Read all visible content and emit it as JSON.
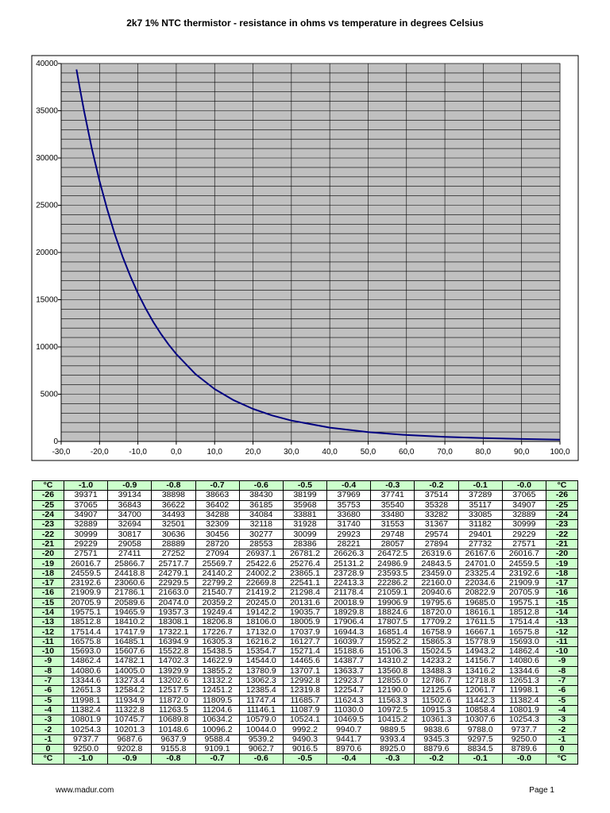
{
  "chart_data": {
    "type": "line",
    "title": "2k7 1% NTC thermistor - resistance in ohms vs temperature in degrees Celsius",
    "xlabel": "",
    "ylabel": "",
    "xlim": [
      -30,
      100
    ],
    "ylim": [
      0,
      40000
    ],
    "x_ticks": [
      "-30,0",
      "-20,0",
      "-10,0",
      "0,0",
      "10,0",
      "20,0",
      "30,0",
      "40,0",
      "50,0",
      "60,0",
      "70,0",
      "80,0",
      "90,0",
      "100,0"
    ],
    "y_ticks": [
      "0",
      "5000",
      "10000",
      "15000",
      "20000",
      "25000",
      "30000",
      "35000",
      "40000"
    ],
    "grid": true,
    "grid_minor_y_step": 1000,
    "legend": "none",
    "colors": {
      "plot_bg": "#c0c0c0",
      "line": "#000080",
      "grid": "#000000"
    },
    "x": [
      -26,
      -25,
      -24,
      -22,
      -20,
      -18,
      -16,
      -14,
      -12,
      -10,
      -8,
      -6,
      -4,
      -2,
      0,
      5,
      10,
      15,
      20,
      25,
      30,
      40,
      50,
      60,
      70,
      80,
      90,
      100
    ],
    "y": [
      39371,
      37065,
      34907,
      30999,
      27571,
      24559.5,
      21909.9,
      19575.1,
      17514.4,
      15693.0,
      14080.6,
      12651.3,
      11382.4,
      10254.3,
      9250.0,
      7130,
      5550,
      4357,
      3448,
      2750,
      2211,
      1458,
      987,
      684,
      484,
      349,
      257,
      192
    ]
  },
  "table": {
    "corner_label": "°C",
    "columns": [
      "-1.0",
      "-0.9",
      "-0.8",
      "-0.7",
      "-0.6",
      "-0.5",
      "-0.4",
      "-0.3",
      "-0.2",
      "-0.1",
      "-0.0"
    ],
    "header_bg": "#ccffcc",
    "rows": [
      {
        "t": "-26",
        "v": [
          "39371",
          "39134",
          "38898",
          "38663",
          "38430",
          "38199",
          "37969",
          "37741",
          "37514",
          "37289",
          "37065"
        ]
      },
      {
        "t": "-25",
        "v": [
          "37065",
          "36843",
          "36622",
          "36402",
          "36185",
          "35968",
          "35753",
          "35540",
          "35328",
          "35117",
          "34907"
        ]
      },
      {
        "t": "-24",
        "v": [
          "34907",
          "34700",
          "34493",
          "34288",
          "34084",
          "33881",
          "33680",
          "33480",
          "33282",
          "33085",
          "32889"
        ]
      },
      {
        "t": "-23",
        "v": [
          "32889",
          "32694",
          "32501",
          "32309",
          "32118",
          "31928",
          "31740",
          "31553",
          "31367",
          "31182",
          "30999"
        ]
      },
      {
        "t": "-22",
        "v": [
          "30999",
          "30817",
          "30636",
          "30456",
          "30277",
          "30099",
          "29923",
          "29748",
          "29574",
          "29401",
          "29229"
        ]
      },
      {
        "t": "-21",
        "v": [
          "29229",
          "29058",
          "28889",
          "28720",
          "28553",
          "28386",
          "28221",
          "28057",
          "27894",
          "27732",
          "27571"
        ]
      },
      {
        "t": "-20",
        "v": [
          "27571",
          "27411",
          "27252",
          "27094",
          "26937.1",
          "26781.2",
          "26626.3",
          "26472.5",
          "26319.6",
          "26167.6",
          "26016.7"
        ]
      },
      {
        "t": "-19",
        "v": [
          "26016.7",
          "25866.7",
          "25717.7",
          "25569.7",
          "25422.6",
          "25276.4",
          "25131.2",
          "24986.9",
          "24843.5",
          "24701.0",
          "24559.5"
        ]
      },
      {
        "t": "-18",
        "v": [
          "24559.5",
          "24418.8",
          "24279.1",
          "24140.2",
          "24002.2",
          "23865.1",
          "23728.9",
          "23593.5",
          "23459.0",
          "23325.4",
          "23192.6"
        ]
      },
      {
        "t": "-17",
        "v": [
          "23192.6",
          "23060.6",
          "22929.5",
          "22799.2",
          "22669.8",
          "22541.1",
          "22413.3",
          "22286.2",
          "22160.0",
          "22034.6",
          "21909.9"
        ]
      },
      {
        "t": "-16",
        "v": [
          "21909.9",
          "21786.1",
          "21663.0",
          "21540.7",
          "21419.2",
          "21298.4",
          "21178.4",
          "21059.1",
          "20940.6",
          "20822.9",
          "20705.9"
        ]
      },
      {
        "t": "-15",
        "v": [
          "20705.9",
          "20589.6",
          "20474.0",
          "20359.2",
          "20245.0",
          "20131.6",
          "20018.9",
          "19906.9",
          "19795.6",
          "19685.0",
          "19575.1"
        ]
      },
      {
        "t": "-14",
        "v": [
          "19575.1",
          "19465.9",
          "19357.3",
          "19249.4",
          "19142.2",
          "19035.7",
          "18929.8",
          "18824.6",
          "18720.0",
          "18616.1",
          "18512.8"
        ]
      },
      {
        "t": "-13",
        "v": [
          "18512.8",
          "18410.2",
          "18308.1",
          "18206.8",
          "18106.0",
          "18005.9",
          "17906.4",
          "17807.5",
          "17709.2",
          "17611.5",
          "17514.4"
        ]
      },
      {
        "t": "-12",
        "v": [
          "17514.4",
          "17417.9",
          "17322.1",
          "17226.7",
          "17132.0",
          "17037.9",
          "16944.3",
          "16851.4",
          "16758.9",
          "16667.1",
          "16575.8"
        ]
      },
      {
        "t": "-11",
        "v": [
          "16575.8",
          "16485.1",
          "16394.9",
          "16305.3",
          "16216.2",
          "16127.7",
          "16039.7",
          "15952.2",
          "15865.3",
          "15778.9",
          "15693.0"
        ]
      },
      {
        "t": "-10",
        "v": [
          "15693.0",
          "15607.6",
          "15522.8",
          "15438.5",
          "15354.7",
          "15271.4",
          "15188.6",
          "15106.3",
          "15024.5",
          "14943.2",
          "14862.4"
        ]
      },
      {
        "t": "-9",
        "v": [
          "14862.4",
          "14782.1",
          "14702.3",
          "14622.9",
          "14544.0",
          "14465.6",
          "14387.7",
          "14310.2",
          "14233.2",
          "14156.7",
          "14080.6"
        ]
      },
      {
        "t": "-8",
        "v": [
          "14080.6",
          "14005.0",
          "13929.9",
          "13855.2",
          "13780.9",
          "13707.1",
          "13633.7",
          "13560.8",
          "13488.3",
          "13416.2",
          "13344.6"
        ]
      },
      {
        "t": "-7",
        "v": [
          "13344.6",
          "13273.4",
          "13202.6",
          "13132.2",
          "13062.3",
          "12992.8",
          "12923.7",
          "12855.0",
          "12786.7",
          "12718.8",
          "12651.3"
        ]
      },
      {
        "t": "-6",
        "v": [
          "12651.3",
          "12584.2",
          "12517.5",
          "12451.2",
          "12385.4",
          "12319.8",
          "12254.7",
          "12190.0",
          "12125.6",
          "12061.7",
          "11998.1"
        ]
      },
      {
        "t": "-5",
        "v": [
          "11998.1",
          "11934.9",
          "11872.0",
          "11809.5",
          "11747.4",
          "11685.7",
          "11624.3",
          "11563.3",
          "11502.6",
          "11442.3",
          "11382.4"
        ]
      },
      {
        "t": "-4",
        "v": [
          "11382.4",
          "11322.8",
          "11263.5",
          "11204.6",
          "11146.1",
          "11087.9",
          "11030.0",
          "10972.5",
          "10915.3",
          "10858.4",
          "10801.9"
        ]
      },
      {
        "t": "-3",
        "v": [
          "10801.9",
          "10745.7",
          "10689.8",
          "10634.2",
          "10579.0",
          "10524.1",
          "10469.5",
          "10415.2",
          "10361.3",
          "10307.6",
          "10254.3"
        ]
      },
      {
        "t": "-2",
        "v": [
          "10254.3",
          "10201.3",
          "10148.6",
          "10096.2",
          "10044.0",
          "9992.2",
          "9940.7",
          "9889.5",
          "9838.6",
          "9788.0",
          "9737.7"
        ]
      },
      {
        "t": "-1",
        "v": [
          "9737.7",
          "9687.6",
          "9637.9",
          "9588.4",
          "9539.2",
          "9490.3",
          "9441.7",
          "9393.4",
          "9345.3",
          "9297.5",
          "9250.0"
        ]
      },
      {
        "t": "0",
        "v": [
          "9250.0",
          "9202.8",
          "9155.8",
          "9109.1",
          "9062.7",
          "9016.5",
          "8970.6",
          "8925.0",
          "8879.6",
          "8834.5",
          "8789.6"
        ]
      }
    ]
  },
  "footer": {
    "left": "www.madur.com",
    "right": "Page 1"
  }
}
